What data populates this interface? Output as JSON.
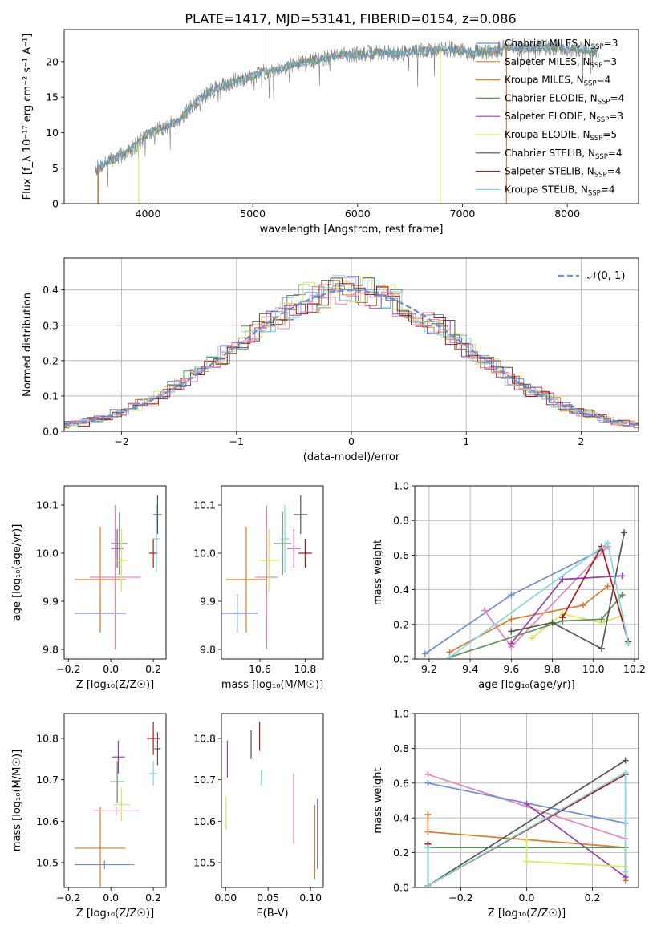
{
  "figure_title": "PLATE=1417, MJD=53141, FIBERID=0154, z=0.086",
  "colors": {
    "chabrier_miles": "#7f7f7f",
    "salpeter_miles": "#6c8fd8",
    "kroupa_miles": "#e07b2a",
    "chabrier_elodie": "#5f8f5f",
    "salpeter_elodie": "#9a3fb0",
    "kroupa_elodie": "#d8e85a",
    "chabrier_stelib": "#555555",
    "salpeter_stelib": "#b01818",
    "kroupa_stelib": "#7fd8e0",
    "pink": "#e883b8",
    "gauss": "#6a8fd8"
  },
  "chart_data": [
    {
      "id": "spectrum",
      "type": "line",
      "xlabel": "wavelength [Angstrom, rest frame]",
      "ylabel": "Flux [f_λ 10⁻¹⁷ erg cm⁻² s⁻¹ A⁻¹]",
      "xlim": [
        3200,
        8680
      ],
      "ylim": [
        0,
        24.5
      ],
      "xticks": [
        4000,
        5000,
        6000,
        7000,
        8000
      ],
      "yticks": [
        0,
        5,
        10,
        15,
        20
      ],
      "legend_position": "right",
      "legend": [
        {
          "base": "Chabrier MILES, N",
          "sub": "SSP",
          "tail": "=3",
          "color_key": "salpeter_miles"
        },
        {
          "base": "Salpeter MILES, N",
          "sub": "SSP",
          "tail": "=3",
          "color_key": "kroupa_miles"
        },
        {
          "base": "Kroupa MILES, N",
          "sub": "SSP",
          "tail": "=4",
          "color_key": "kroupa_miles"
        },
        {
          "base": "Chabrier ELODIE, N",
          "sub": "SSP",
          "tail": "=4",
          "color_key": "chabrier_elodie"
        },
        {
          "base": "Salpeter ELODIE, N",
          "sub": "SSP",
          "tail": "=3",
          "color_key": "salpeter_elodie"
        },
        {
          "base": "Kroupa ELODIE, N",
          "sub": "SSP",
          "tail": "=5",
          "color_key": "kroupa_elodie"
        },
        {
          "base": "Chabrier STELIB, N",
          "sub": "SSP",
          "tail": "=4",
          "color_key": "chabrier_stelib"
        },
        {
          "base": "Salpeter STELIB, N",
          "sub": "SSP",
          "tail": "=4",
          "color_key": "salpeter_stelib"
        },
        {
          "base": "Kroupa STELIB, N",
          "sub": "SSP",
          "tail": "=4",
          "color_key": "kroupa_stelib"
        }
      ],
      "continuum": [
        [
          3500,
          5
        ],
        [
          3600,
          5.8
        ],
        [
          3700,
          6.5
        ],
        [
          3800,
          7.2
        ],
        [
          3900,
          8.5
        ],
        [
          4000,
          9.8
        ],
        [
          4100,
          10.5
        ],
        [
          4200,
          11
        ],
        [
          4300,
          11.8
        ],
        [
          4400,
          13.5
        ],
        [
          4500,
          14.8
        ],
        [
          4600,
          15.8
        ],
        [
          4700,
          16.5
        ],
        [
          4800,
          17.2
        ],
        [
          4900,
          17.5
        ],
        [
          5000,
          18
        ],
        [
          5100,
          18.5
        ],
        [
          5200,
          18.8
        ],
        [
          5300,
          19.3
        ],
        [
          5400,
          19.6
        ],
        [
          5500,
          20
        ],
        [
          5600,
          20.2
        ],
        [
          5700,
          20.5
        ],
        [
          5800,
          20.8
        ],
        [
          5900,
          21
        ],
        [
          6000,
          21
        ],
        [
          6100,
          21.2
        ],
        [
          6200,
          21.3
        ],
        [
          6300,
          21.2
        ],
        [
          6400,
          21.2
        ],
        [
          6500,
          21.4
        ],
        [
          6600,
          21.5
        ],
        [
          6700,
          21.6
        ],
        [
          6800,
          21.7
        ],
        [
          6900,
          21.8
        ],
        [
          7000,
          21.5
        ],
        [
          7100,
          21.2
        ],
        [
          7200,
          21.4
        ],
        [
          7300,
          21.6
        ],
        [
          7400,
          22
        ],
        [
          7500,
          21.9
        ],
        [
          7600,
          21.8
        ],
        [
          7700,
          21.9
        ],
        [
          7800,
          22
        ],
        [
          7900,
          22
        ],
        [
          8000,
          21.8
        ],
        [
          8100,
          21.8
        ],
        [
          8200,
          21.5
        ],
        [
          8300,
          21.2
        ]
      ],
      "observed_noise": 1.2,
      "observed_seed": 7,
      "spikes": [
        [
          5125,
          24.5
        ],
        [
          3520,
          0
        ],
        [
          7420,
          0
        ]
      ],
      "model_drops": [
        {
          "x": 3525,
          "color_key": "kroupa_miles"
        },
        {
          "x": 3910,
          "color_key": "kroupa_elodie"
        },
        {
          "x": 6790,
          "color_key": "kroupa_elodie"
        },
        {
          "x": 7420,
          "color_key": "kroupa_miles"
        }
      ]
    },
    {
      "id": "residuals",
      "type": "histogram",
      "xlabel": "(data-model)/error",
      "ylabel": "Normed distribution",
      "xlim": [
        -2.5,
        2.5
      ],
      "ylim": [
        0,
        0.49
      ],
      "xticks": [
        -2,
        -1,
        0,
        1,
        2
      ],
      "yticks": [
        0,
        0.1,
        0.2,
        0.3,
        0.4
      ],
      "grid": true,
      "legend_position": "top-right",
      "gauss_label": "𝒩(0, 1)",
      "bin_width": 0.1,
      "gauss_mean": 0,
      "gauss_sigma": 1,
      "series_colors": [
        "salpeter_miles",
        "kroupa_miles",
        "chabrier_elodie",
        "salpeter_elodie",
        "kroupa_elodie",
        "chabrier_stelib",
        "salpeter_stelib",
        "kroupa_stelib",
        "pink"
      ]
    },
    {
      "id": "age_vs_Z",
      "type": "scatter",
      "xlabel": "Z [log₁₀(Z/Z☉)]",
      "ylabel": "age  [log₁₀(age/yr)]",
      "xlim": [
        -0.22,
        0.26
      ],
      "ylim": [
        9.78,
        10.14
      ],
      "xticks": [
        -0.2,
        0.0,
        0.2
      ],
      "yticks": [
        9.8,
        9.9,
        10.0,
        10.1
      ],
      "points": [
        {
          "x": -0.05,
          "y": 9.875,
          "xerr": 0.12,
          "yerr": 0.04,
          "color_key": "salpeter_miles"
        },
        {
          "x": -0.05,
          "y": 9.945,
          "xerr": 0.12,
          "yerr": 0.11,
          "color_key": "kroupa_miles"
        },
        {
          "x": 0.02,
          "y": 9.95,
          "xerr": 0.12,
          "yerr": 0.15,
          "color_key": "pink"
        },
        {
          "x": 0.03,
          "y": 10.01,
          "xerr": 0.03,
          "yerr": 0.04,
          "color_key": "salpeter_elodie"
        },
        {
          "x": 0.04,
          "y": 10.02,
          "xerr": 0.04,
          "yerr": 0.065,
          "color_key": "chabrier_elodie"
        },
        {
          "x": 0.05,
          "y": 9.985,
          "xerr": 0.03,
          "yerr": 0.065,
          "color_key": "kroupa_elodie"
        },
        {
          "x": 0.2,
          "y": 10.0,
          "xerr": 0.02,
          "yerr": 0.03,
          "color_key": "salpeter_stelib"
        },
        {
          "x": 0.215,
          "y": 10.03,
          "xerr": 0.02,
          "yerr": 0.07,
          "color_key": "kroupa_stelib"
        },
        {
          "x": 0.22,
          "y": 10.08,
          "xerr": 0.02,
          "yerr": 0.04,
          "color_key": "chabrier_stelib"
        }
      ]
    },
    {
      "id": "age_vs_mass",
      "type": "scatter",
      "xlabel": "mass [log₁₀(M/M☉)]",
      "ylabel": "",
      "xlim": [
        10.43,
        10.88
      ],
      "ylim": [
        9.78,
        10.14
      ],
      "xticks": [
        10.6,
        10.8
      ],
      "yticks": [
        9.8,
        9.9,
        10.0,
        10.1
      ],
      "points": [
        {
          "x": 10.5,
          "y": 9.875,
          "xerr": 0.09,
          "yerr": 0.04,
          "color_key": "salpeter_miles"
        },
        {
          "x": 10.54,
          "y": 9.945,
          "xerr": 0.09,
          "yerr": 0.11,
          "color_key": "kroupa_miles"
        },
        {
          "x": 10.63,
          "y": 9.95,
          "xerr": 0.05,
          "yerr": 0.15,
          "color_key": "pink"
        },
        {
          "x": 10.64,
          "y": 9.985,
          "xerr": 0.04,
          "yerr": 0.065,
          "color_key": "kroupa_elodie"
        },
        {
          "x": 10.7,
          "y": 10.02,
          "xerr": 0.04,
          "yerr": 0.065,
          "color_key": "chabrier_elodie"
        },
        {
          "x": 10.71,
          "y": 10.03,
          "xerr": 0.02,
          "yerr": 0.07,
          "color_key": "kroupa_stelib"
        },
        {
          "x": 10.75,
          "y": 10.01,
          "xerr": 0.03,
          "yerr": 0.04,
          "color_key": "salpeter_elodie"
        },
        {
          "x": 10.78,
          "y": 10.08,
          "xerr": 0.03,
          "yerr": 0.04,
          "color_key": "chabrier_stelib"
        },
        {
          "x": 10.8,
          "y": 10.0,
          "xerr": 0.03,
          "yerr": 0.03,
          "color_key": "salpeter_stelib"
        }
      ]
    },
    {
      "id": "weight_vs_age",
      "type": "line",
      "xlabel": "age  [log₁₀(age/yr)]",
      "ylabel": "mass weight",
      "xlim": [
        9.13,
        10.22
      ],
      "ylim": [
        0,
        1.0
      ],
      "xticks": [
        9.2,
        9.4,
        9.6,
        9.8,
        10.0,
        10.2
      ],
      "yticks": [
        0,
        0.2,
        0.4,
        0.6,
        0.8,
        1.0
      ],
      "grid": true,
      "series": [
        {
          "color_key": "salpeter_miles",
          "points": [
            [
              9.18,
              0.03
            ],
            [
              9.6,
              0.37
            ],
            [
              10.04,
              0.63
            ]
          ]
        },
        {
          "color_key": "kroupa_miles",
          "points": [
            [
              9.3,
              0.04
            ],
            [
              9.6,
              0.23
            ],
            [
              9.95,
              0.31
            ],
            [
              10.07,
              0.42
            ]
          ]
        },
        {
          "color_key": "pink",
          "points": [
            [
              9.47,
              0.28
            ],
            [
              9.6,
              0.07
            ],
            [
              10.07,
              0.65
            ]
          ]
        },
        {
          "color_key": "salpeter_elodie",
          "points": [
            [
              9.6,
              0.09
            ],
            [
              9.85,
              0.46
            ],
            [
              10.14,
              0.48
            ]
          ]
        },
        {
          "color_key": "kroupa_elodie",
          "points": [
            [
              9.7,
              0.12
            ],
            [
              9.85,
              0.26
            ],
            [
              10.04,
              0.21
            ],
            [
              10.14,
              0.25
            ]
          ]
        },
        {
          "color_key": "chabrier_elodie",
          "points": [
            [
              9.3,
              0.01
            ],
            [
              9.85,
              0.22
            ],
            [
              10.04,
              0.23
            ],
            [
              10.14,
              0.37
            ]
          ]
        },
        {
          "color_key": "chabrier_stelib",
          "points": [
            [
              9.6,
              0.16
            ],
            [
              9.8,
              0.21
            ],
            [
              10.04,
              0.06
            ],
            [
              10.15,
              0.73
            ]
          ]
        },
        {
          "color_key": "salpeter_stelib",
          "points": [
            [
              9.85,
              0.24
            ],
            [
              10.04,
              0.65
            ],
            [
              10.17,
              0.1
            ]
          ]
        },
        {
          "color_key": "kroupa_stelib",
          "points": [
            [
              9.3,
              0.01
            ],
            [
              10.07,
              0.67
            ],
            [
              10.17,
              0.09
            ]
          ]
        }
      ]
    },
    {
      "id": "mass_vs_Z",
      "type": "scatter",
      "xlabel": "Z [log₁₀(Z/Z☉)]",
      "ylabel": "mass [log₁₀(M/M☉)]",
      "xlim": [
        -0.22,
        0.26
      ],
      "ylim": [
        10.44,
        10.86
      ],
      "xticks": [
        -0.2,
        0.0,
        0.2
      ],
      "yticks": [
        10.5,
        10.6,
        10.7,
        10.8
      ],
      "points": [
        {
          "x": -0.03,
          "y": 10.495,
          "xerr": 0.14,
          "yerr": 0.01,
          "color_key": "salpeter_miles"
        },
        {
          "x": -0.05,
          "y": 10.535,
          "xerr": 0.12,
          "yerr": 0.1,
          "color_key": "kroupa_miles"
        },
        {
          "x": 0.025,
          "y": 10.625,
          "xerr": 0.11,
          "yerr": 0.01,
          "color_key": "pink"
        },
        {
          "x": 0.05,
          "y": 10.64,
          "xerr": 0.04,
          "yerr": 0.04,
          "color_key": "kroupa_elodie"
        },
        {
          "x": 0.03,
          "y": 10.695,
          "xerr": 0.035,
          "yerr": 0.05,
          "color_key": "chabrier_elodie"
        },
        {
          "x": 0.035,
          "y": 10.755,
          "xerr": 0.03,
          "yerr": 0.04,
          "color_key": "salpeter_elodie"
        },
        {
          "x": 0.2,
          "y": 10.8,
          "xerr": 0.03,
          "yerr": 0.04,
          "color_key": "salpeter_stelib"
        },
        {
          "x": 0.22,
          "y": 10.775,
          "xerr": 0.015,
          "yerr": 0.04,
          "color_key": "chabrier_stelib"
        },
        {
          "x": 0.2,
          "y": 10.715,
          "xerr": 0.02,
          "yerr": 0.03,
          "color_key": "kroupa_stelib"
        }
      ]
    },
    {
      "id": "mass_vs_EBV",
      "type": "scatter",
      "xlabel": "E(B-V)",
      "ylabel": "",
      "xlim": [
        -0.005,
        0.115
      ],
      "ylim": [
        10.44,
        10.86
      ],
      "xticks": [
        0.0,
        0.05,
        0.1
      ],
      "yticks": [
        10.5,
        10.6,
        10.7,
        10.8
      ],
      "points": [
        {
          "x": 0.0005,
          "y": 10.62,
          "xerr": 0,
          "yerr": 0.04,
          "color_key": "kroupa_elodie"
        },
        {
          "x": 0.002,
          "y": 10.75,
          "xerr": 0,
          "yerr": 0.045,
          "color_key": "salpeter_elodie"
        },
        {
          "x": 0.03,
          "y": 10.785,
          "xerr": 0,
          "yerr": 0.035,
          "color_key": "chabrier_stelib"
        },
        {
          "x": 0.04,
          "y": 10.805,
          "xerr": 0,
          "yerr": 0.035,
          "color_key": "salpeter_stelib"
        },
        {
          "x": 0.042,
          "y": 10.705,
          "xerr": 0,
          "yerr": 0.02,
          "color_key": "kroupa_stelib"
        },
        {
          "x": 0.08,
          "y": 10.63,
          "xerr": 0,
          "yerr": 0.085,
          "color_key": "pink"
        },
        {
          "x": 0.105,
          "y": 10.55,
          "xerr": 0,
          "yerr": 0.09,
          "color_key": "kroupa_miles"
        },
        {
          "x": 0.108,
          "y": 10.57,
          "xerr": 0,
          "yerr": 0.085,
          "color_key": "salpeter_miles"
        }
      ]
    },
    {
      "id": "weight_vs_Z",
      "type": "line",
      "xlabel": "Z [log₁₀(Z/Z☉)]",
      "ylabel": "mass weight",
      "xlim": [
        -0.34,
        0.34
      ],
      "ylim": [
        0,
        1.0
      ],
      "xticks": [
        -0.2,
        0.0,
        0.2
      ],
      "yticks": [
        0,
        0.2,
        0.4,
        0.6,
        0.8,
        1.0
      ],
      "grid": true,
      "series": [
        {
          "color_key": "pink",
          "points": [
            [
              -0.3,
              0.65
            ],
            [
              0.3,
              0.28
            ]
          ]
        },
        {
          "color_key": "salpeter_miles",
          "points": [
            [
              -0.3,
              0.6
            ],
            [
              0.3,
              0.37
            ]
          ]
        },
        {
          "color_key": "kroupa_miles",
          "points": [
            [
              -0.3,
              0.42
            ],
            [
              -0.3,
              0.32
            ],
            [
              0.3,
              0.23
            ],
            [
              0.3,
              0.04
            ]
          ]
        },
        {
          "color_key": "salpeter_elodie",
          "points": [
            [
              0.0,
              0.48
            ],
            [
              0.3,
              0.06
            ]
          ]
        },
        {
          "color_key": "chabrier_elodie",
          "points": [
            [
              -0.3,
              0.23
            ],
            [
              0.3,
              0.23
            ]
          ]
        },
        {
          "color_key": "kroupa_elodie",
          "points": [
            [
              0.0,
              0.27
            ],
            [
              0.0,
              0.15
            ],
            [
              0.3,
              0.12
            ]
          ]
        },
        {
          "color_key": "chabrier_stelib",
          "points": [
            [
              -0.3,
              0.01
            ],
            [
              0.3,
              0.73
            ]
          ]
        },
        {
          "color_key": "salpeter_stelib",
          "points": [
            [
              -0.3,
              0.25
            ],
            [
              -0.3,
              0.01
            ],
            [
              0.3,
              0.65
            ]
          ]
        },
        {
          "color_key": "kroupa_stelib",
          "points": [
            [
              -0.3,
              0.23
            ],
            [
              -0.3,
              0.01
            ],
            [
              0.3,
              0.66
            ],
            [
              0.3,
              0.09
            ]
          ]
        }
      ]
    }
  ]
}
